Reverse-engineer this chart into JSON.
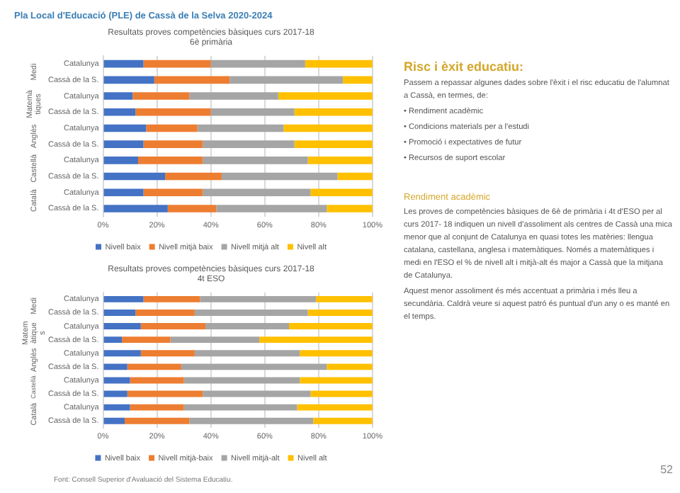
{
  "chart_data": [
    {
      "type": "other",
      "title": "Pla Local d'Educació (PLE) de Cassà de la Selva 2020-2024"
    },
    {
      "type": "bar",
      "orientation": "horizontal",
      "stacked": true,
      "title": "Resultats proves competències bàsiques curs 2017-18",
      "subtitle": "6è primària",
      "categories": [
        "Catalunya",
        "Cassà de la S.",
        "Catalunya",
        "Cassà de la S.",
        "Catalunya",
        "Cassà de la S.",
        "Catalunya",
        "Cassà de la S.",
        "Catalunya",
        "Cassà de la S."
      ],
      "annotations": [
        "Medi",
        "Matemàtiques",
        "Anglès",
        "Castellà",
        "Català"
      ],
      "series": [
        {
          "name": "Nivell baix",
          "color": "#4472c4",
          "values": [
            15,
            19,
            11,
            12,
            16,
            15,
            13,
            23,
            15,
            24
          ]
        },
        {
          "name": "Nivell mitjà baix",
          "color": "#ed7d31",
          "values": [
            25,
            28,
            21,
            28,
            19,
            22,
            24,
            21,
            22,
            18
          ]
        },
        {
          "name": "Nivell mitjà alt",
          "color": "#a5a5a5",
          "values": [
            35,
            42,
            33,
            31,
            32,
            34,
            39,
            43,
            40,
            41
          ]
        },
        {
          "name": "Nivell alt",
          "color": "#ffc000",
          "values": [
            25,
            11,
            35,
            29,
            33,
            29,
            24,
            13,
            23,
            17
          ]
        }
      ],
      "xlim": [
        0,
        100
      ],
      "xticks": [
        {
          "value": 0,
          "label": "0%"
        },
        {
          "value": 20,
          "label": "20%"
        },
        {
          "value": 40,
          "label": "40%"
        },
        {
          "value": 60,
          "label": "60%"
        },
        {
          "value": 80,
          "label": "80%"
        },
        {
          "value": 100,
          "label": "100%"
        }
      ],
      "grid": "x",
      "legend": "bottom"
    },
    {
      "type": "bar",
      "orientation": "horizontal",
      "stacked": true,
      "title": "Resultats proves competències bàsiques curs 2017-18",
      "subtitle": "4t ESO",
      "categories": [
        "Catalunya",
        "Cassà de la S.",
        "Catalunya",
        "Cassà de la S.",
        "Catalunya",
        "Cassà de la S.",
        "Catalunya",
        "Cassà de la S.",
        "Catalunya",
        "Cassà de la S."
      ],
      "annotations": [
        "Medi",
        "Matemàtiques",
        "Anglès",
        "Castellà",
        "Català"
      ],
      "series": [
        {
          "name": "Nivell baix",
          "color": "#4472c4",
          "values": [
            15,
            12,
            14,
            7,
            14,
            9,
            10,
            9,
            10,
            8
          ]
        },
        {
          "name": "Nivell mitjà-baix",
          "color": "#ed7d31",
          "values": [
            21,
            22,
            24,
            18,
            20,
            20,
            20,
            28,
            20,
            24
          ]
        },
        {
          "name": "Nivell mitjà-alt",
          "color": "#a5a5a5",
          "values": [
            43,
            42,
            31,
            33,
            39,
            54,
            43,
            40,
            42,
            46
          ]
        },
        {
          "name": "Nivell alt",
          "color": "#ffc000",
          "values": [
            21,
            24,
            31,
            42,
            27,
            17,
            27,
            23,
            28,
            22
          ]
        }
      ],
      "xlim": [
        0,
        100
      ],
      "xticks": [
        {
          "value": 0,
          "label": "0%"
        },
        {
          "value": 20,
          "label": "20%"
        },
        {
          "value": 40,
          "label": "40%"
        },
        {
          "value": 60,
          "label": "60%"
        },
        {
          "value": 80,
          "label": "80%"
        },
        {
          "value": 100,
          "label": "100%"
        }
      ],
      "grid": "x",
      "legend": "bottom"
    },
    {
      "type": "other",
      "annotations": [
        "Font: Consell Superior d'Avaluació del Sistema Educatiu."
      ]
    },
    {
      "type": "other",
      "title": "Risc i èxit educatiu:",
      "annotations": [
        "Passem a repassar algunes dades sobre l'èxit i el risc educatiu de l'alumnat a Cassà, en termes, de:",
        "•  Rendiment acadèmic",
        "•  Condicions materials per a l'estudi",
        "•  Promoció i expectatives de futur",
        "•  Recursos de suport escolar"
      ]
    },
    {
      "type": "other",
      "title": "Rendiment acadèmic",
      "annotations": [
        "Les proves de competències bàsiques de 6è de primària i 4t d'ESO per al curs 2017- 18 indiquen un nivell d'assoliment als centres de Cassà una mica menor que al conjunt de Catalunya en quasi totes les matèries: llengua catalana, castellana, anglesa i matemàtiques. Només a matemàtiques i medi en l'ESO el % de nivell alt i mitjà-alt és major a Cassà que la mitjana de Catalunya.",
        "Aquest menor assoliment és més accentuat a primària i més lleu a secundària. Caldrà veure si aquest patró és puntual d'un any o es manté en el temps."
      ]
    },
    {
      "type": "other",
      "annotations": [
        "52"
      ]
    }
  ]
}
